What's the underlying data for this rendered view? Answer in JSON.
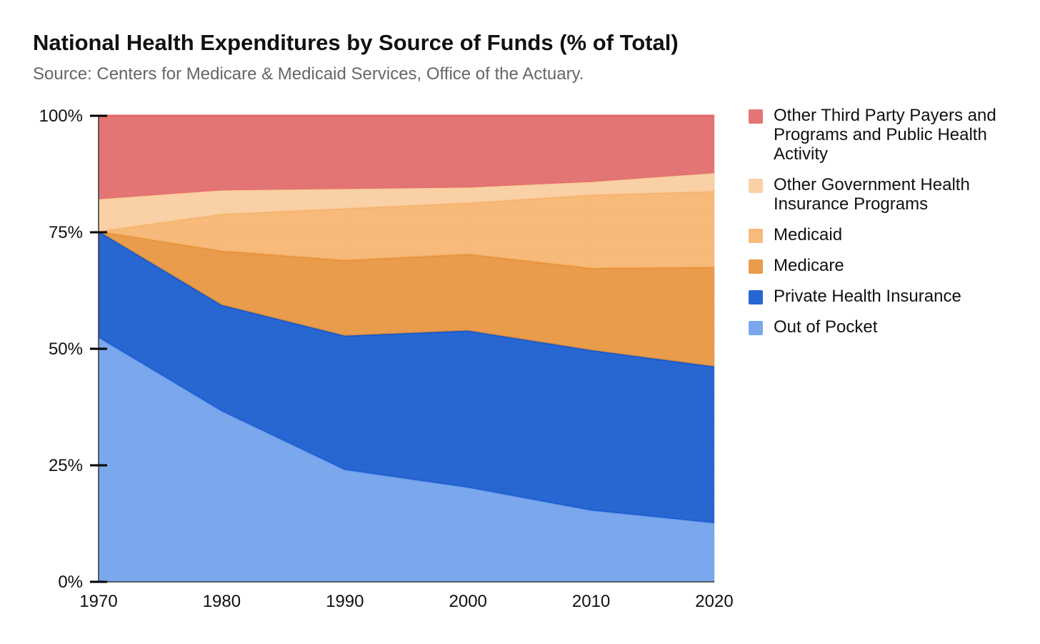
{
  "chart_data": {
    "type": "area",
    "stacked": true,
    "normalized": true,
    "title": "National Health Expenditures by Source of Funds (% of Total)",
    "subtitle": "Source: Centers for Medicare & Medicaid Services, Office of the Actuary.",
    "xlabel": "",
    "ylabel": "",
    "x": [
      1970,
      1980,
      1990,
      2000,
      2010,
      2020
    ],
    "x_tick_labels": [
      "1970",
      "1980",
      "1990",
      "2000",
      "2010",
      "2020"
    ],
    "y_tick_values": [
      0,
      25,
      50,
      75,
      100
    ],
    "y_tick_labels": [
      "0%",
      "25%",
      "50%",
      "75%",
      "100%"
    ],
    "ylim": [
      0,
      100
    ],
    "grid": true,
    "legend_position": "right",
    "series": [
      {
        "name": "Out of Pocket",
        "color": "#6d9eeb",
        "values": [
          52.4,
          36.6,
          24.0,
          20.2,
          15.3,
          12.6
        ]
      },
      {
        "name": "Private Health Insurance",
        "color": "#1155cc",
        "values": [
          22.8,
          22.8,
          28.8,
          33.7,
          34.4,
          33.6
        ]
      },
      {
        "name": "Medicare",
        "color": "#e69138",
        "values": [
          0.0,
          11.6,
          16.2,
          16.4,
          17.6,
          21.3
        ]
      },
      {
        "name": "Medicaid",
        "color": "#f6b26b",
        "values": [
          0.0,
          7.9,
          11.1,
          11.0,
          15.7,
          16.3
        ]
      },
      {
        "name": "Other Government Health Insurance Programs",
        "color": "#f9cb9c",
        "values": [
          6.9,
          5.1,
          4.2,
          3.3,
          2.8,
          3.9
        ]
      },
      {
        "name": "Other Third Party Payers and Programs and Public Health Activity",
        "color": "#e06666",
        "values": [
          17.9,
          16.0,
          15.7,
          15.4,
          14.2,
          12.3
        ]
      }
    ],
    "legend_order": [
      "Other Third Party Payers and Programs and Public Health Activity",
      "Other Government Health Insurance Programs",
      "Medicaid",
      "Medicare",
      "Private Health Insurance",
      "Out of Pocket"
    ]
  }
}
